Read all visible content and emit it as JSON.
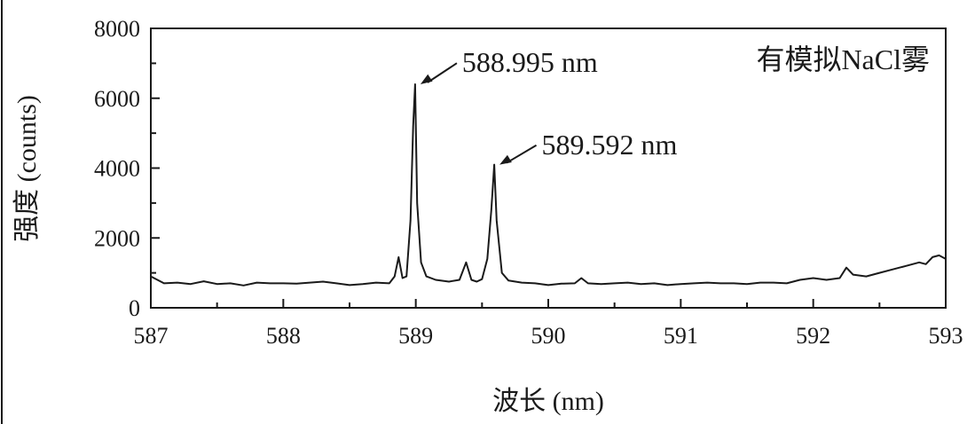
{
  "chart_data": {
    "type": "line",
    "title": "",
    "legend_label": "有模拟NaCl雾",
    "legend_placement": "top-right",
    "xlabel": "波长 (nm)",
    "ylabel": "强度 (counts)",
    "xlim": [
      587,
      593
    ],
    "ylim": [
      0,
      8000
    ],
    "x_ticks": [
      587,
      588,
      589,
      590,
      591,
      592,
      593
    ],
    "y_ticks": [
      0,
      2000,
      4000,
      6000,
      8000
    ],
    "x_tick_labels": [
      "587",
      "588",
      "589",
      "590",
      "591",
      "592",
      "593"
    ],
    "y_tick_labels": [
      "0",
      "2000",
      "4000",
      "6000",
      "8000"
    ],
    "grid": false,
    "line_color": "#1a1a1a",
    "series": [
      {
        "x": [
          587.0,
          587.1,
          587.2,
          587.3,
          587.4,
          587.5,
          587.6,
          587.7,
          587.8,
          587.9,
          588.0,
          588.1,
          588.2,
          588.3,
          588.4,
          588.5,
          588.6,
          588.7,
          588.8,
          588.84,
          588.87,
          588.9,
          588.93,
          588.96,
          588.98,
          588.995,
          589.01,
          589.04,
          589.08,
          589.15,
          589.25,
          589.33,
          589.38,
          589.42,
          589.46,
          589.5,
          589.54,
          589.57,
          589.592,
          589.61,
          589.65,
          589.7,
          589.8,
          589.9,
          590.0,
          590.1,
          590.2,
          590.25,
          590.3,
          590.4,
          590.5,
          590.6,
          590.7,
          590.8,
          590.9,
          591.0,
          591.1,
          591.2,
          591.3,
          591.4,
          591.5,
          591.6,
          591.7,
          591.8,
          591.9,
          592.0,
          592.1,
          592.2,
          592.25,
          592.3,
          592.4,
          592.5,
          592.6,
          592.7,
          592.8,
          592.85,
          592.9,
          592.95,
          593.0
        ],
        "y": [
          900,
          700,
          720,
          680,
          760,
          680,
          700,
          640,
          720,
          700,
          700,
          690,
          720,
          750,
          700,
          650,
          680,
          720,
          700,
          900,
          1450,
          850,
          900,
          2500,
          5200,
          6400,
          3000,
          1300,
          900,
          800,
          750,
          800,
          1300,
          800,
          750,
          820,
          1400,
          2800,
          4100,
          2500,
          1000,
          780,
          720,
          700,
          650,
          690,
          700,
          850,
          700,
          680,
          700,
          720,
          680,
          700,
          650,
          680,
          700,
          720,
          700,
          700,
          680,
          720,
          720,
          700,
          800,
          850,
          800,
          850,
          1150,
          950,
          900,
          1000,
          1100,
          1200,
          1300,
          1250,
          1450,
          1500,
          1400
        ]
      }
    ],
    "annotations": [
      {
        "text": "588.995 nm",
        "x": 588.995,
        "y": 6400,
        "label_x": 589.35,
        "label_y": 6750
      },
      {
        "text": "589.592 nm",
        "x": 589.592,
        "y": 4100,
        "label_x": 589.95,
        "label_y": 4400
      }
    ]
  }
}
